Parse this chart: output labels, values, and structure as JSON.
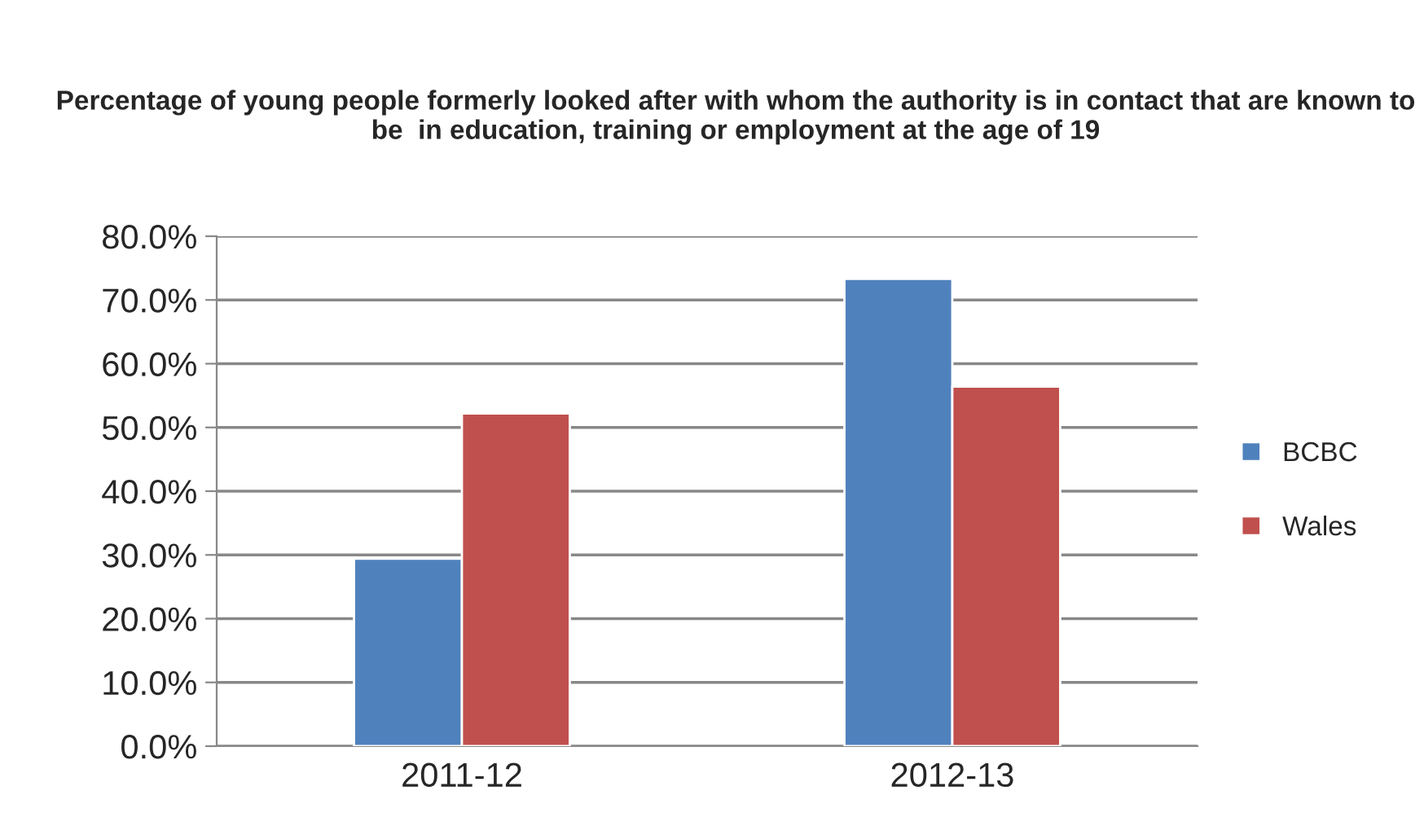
{
  "chart_data": {
    "type": "bar",
    "title": "Percentage of young people formerly looked after with whom the authority is in contact that are known to be  in education, training or employment at the age of 19",
    "categories": [
      "2011-12",
      "2012-13"
    ],
    "series": [
      {
        "name": "BCBC",
        "color": "#4f81bd",
        "values": [
          29.4,
          73.3
        ]
      },
      {
        "name": "Wales",
        "color": "#c0504d",
        "values": [
          52.2,
          56.4
        ]
      }
    ],
    "ylim": [
      0,
      80
    ],
    "yticks": [
      {
        "value": 0,
        "label": "0.0%"
      },
      {
        "value": 10,
        "label": "10.0%"
      },
      {
        "value": 20,
        "label": "20.0%"
      },
      {
        "value": 30,
        "label": "30.0%"
      },
      {
        "value": 40,
        "label": "40.0%"
      },
      {
        "value": 50,
        "label": "50.0%"
      },
      {
        "value": 60,
        "label": "60.0%"
      },
      {
        "value": 70,
        "label": "70.0%"
      },
      {
        "value": 80,
        "label": "80.0%"
      }
    ],
    "grid": "y",
    "legend": "right"
  }
}
